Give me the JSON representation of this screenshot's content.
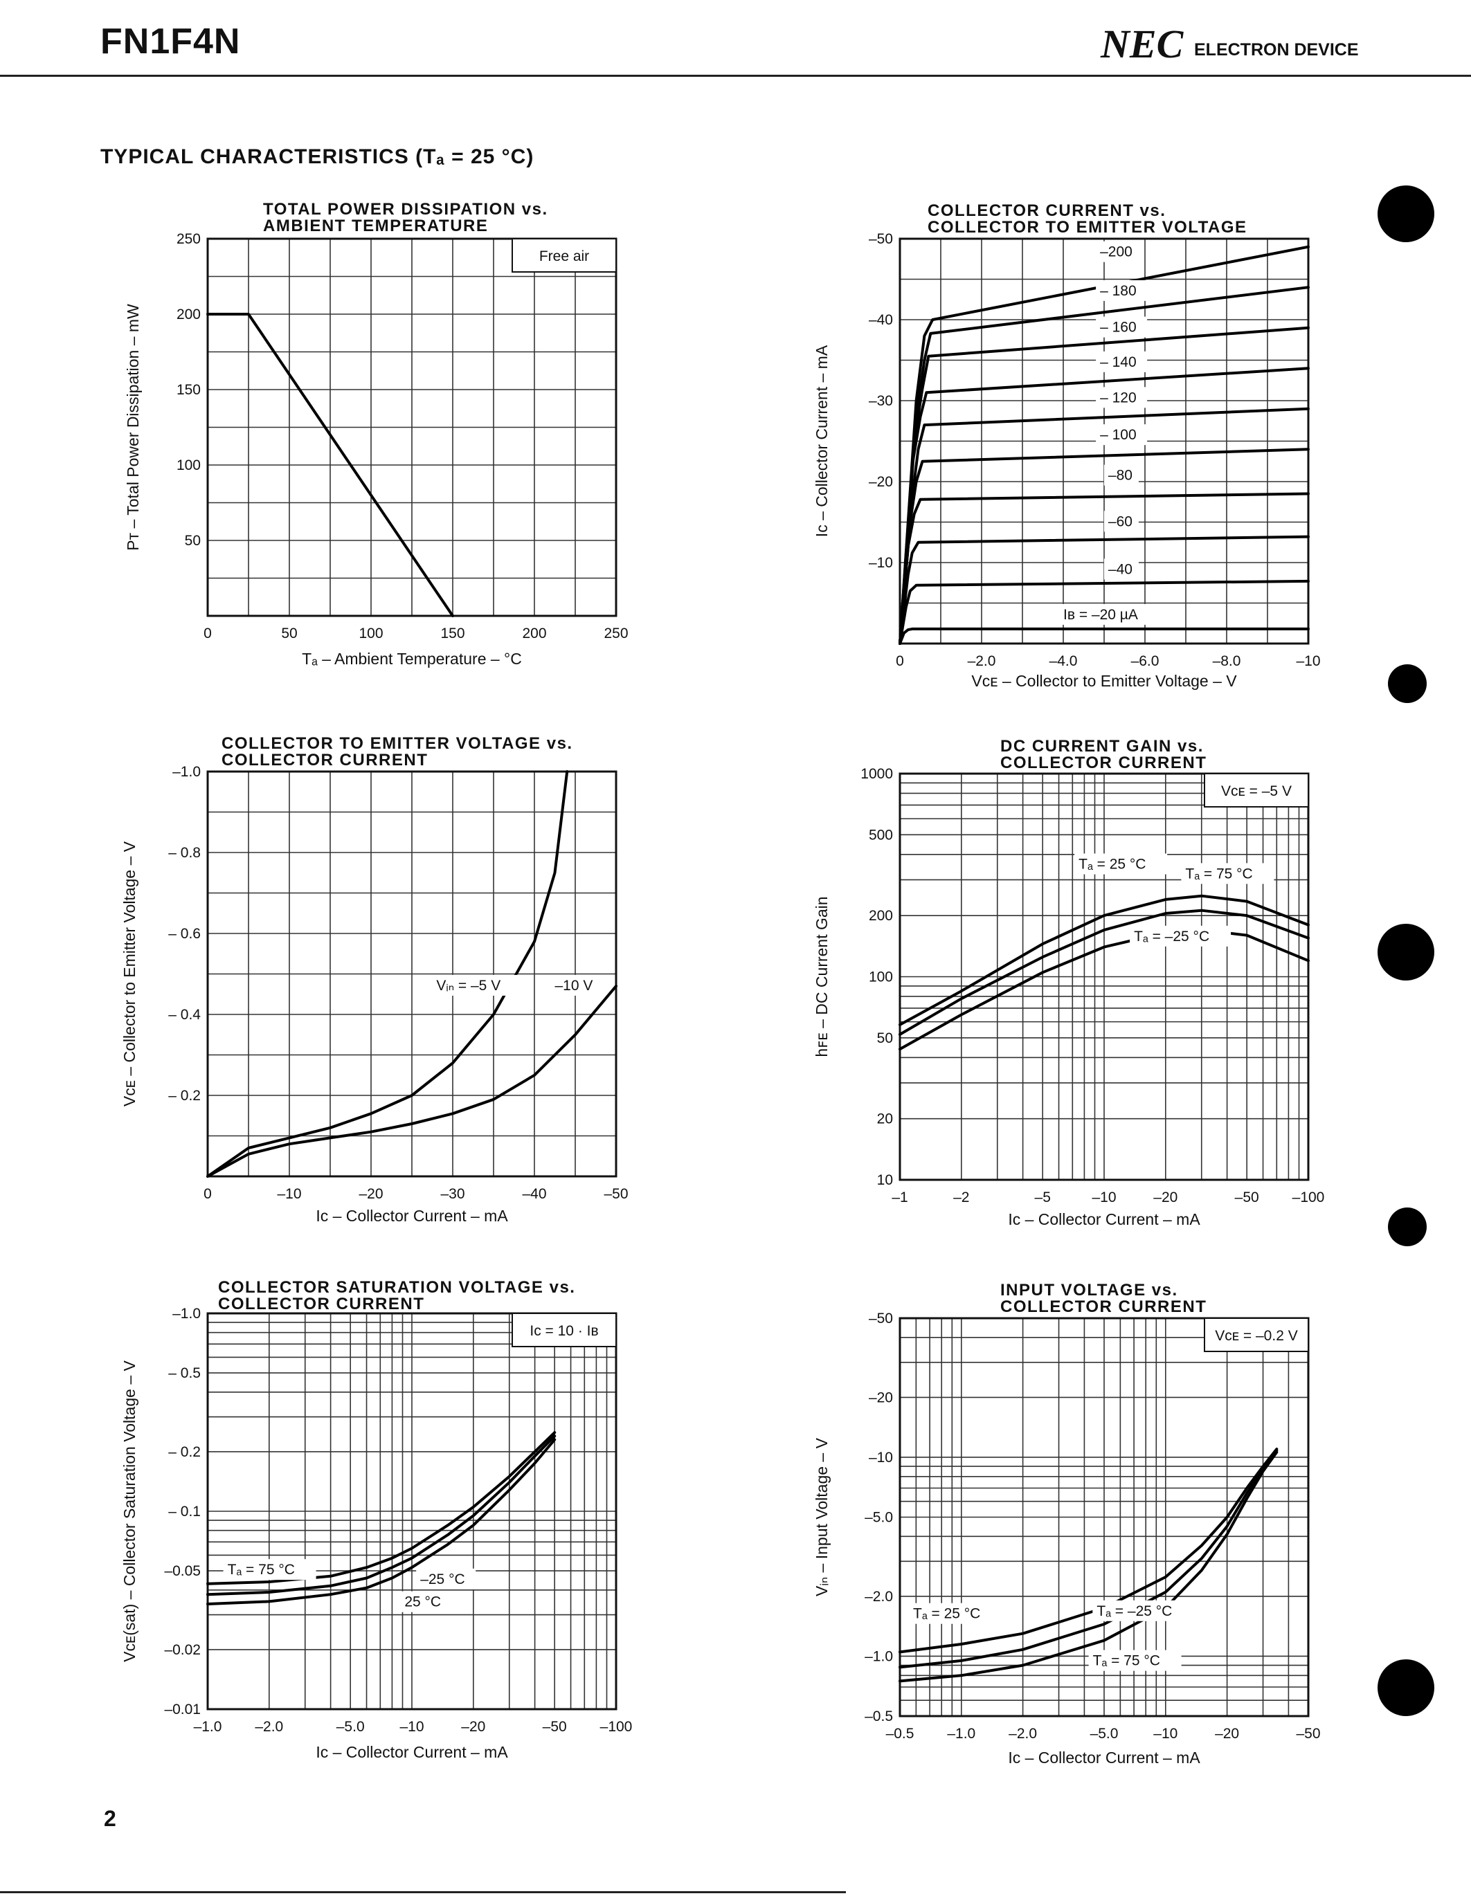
{
  "header": {
    "title": "FN1F4N",
    "brand": "NEC",
    "department": "ELECTRON DEVICE"
  },
  "section_title": "TYPICAL  CHARACTERISTICS  (Tₐ = 25 °C)",
  "page_number": "2",
  "chart_data": [
    {
      "id": "c1",
      "type": "line",
      "title": [
        "TOTAL POWER DISSIPATION vs.",
        "AMBIENT TEMPERATURE"
      ],
      "xlabel": "Tₐ – Ambient Temperature – °C",
      "ylabel": "Pᴛ – Total Power Dissipation – mW",
      "xlim": [
        0,
        250
      ],
      "ylim": [
        0,
        250
      ],
      "xticks": [
        0,
        50,
        100,
        150,
        200,
        250
      ],
      "xtick_labels": [
        "0",
        "50",
        "100",
        "150",
        "200",
        "250"
      ],
      "yticks": [
        50,
        100,
        150,
        200,
        250
      ],
      "ytick_labels": [
        "50",
        "100",
        "150",
        "200",
        "250"
      ],
      "annotation": "Free air",
      "series": [
        {
          "name": "PT",
          "x": [
            0,
            25,
            150
          ],
          "y": [
            200,
            200,
            0
          ]
        }
      ]
    },
    {
      "id": "c2",
      "type": "line",
      "title": [
        "COLLECTOR CURRENT vs.",
        "COLLECTOR TO EMITTER VOLTAGE"
      ],
      "xlabel": "Vᴄᴇ – Collector to Emitter Voltage – V",
      "ylabel": "Iᴄ – Collector Current – mA",
      "xlim": [
        0,
        -10
      ],
      "ylim": [
        0,
        -50
      ],
      "xticks": [
        0,
        -2,
        -4,
        -6,
        -8,
        -10
      ],
      "xtick_labels": [
        "0",
        "–2.0",
        "–4.0",
        "–6.0",
        "–8.0",
        "–10"
      ],
      "yticks": [
        -10,
        -20,
        -30,
        -40,
        -50
      ],
      "ytick_labels": [
        "–10",
        "–20",
        "–30",
        "–40",
        "–50"
      ],
      "parameter": "Iʙ (µA)",
      "series": [
        {
          "name": "Iʙ = –20 µA",
          "x": [
            0,
            -0.1,
            -0.2,
            -0.3,
            -10
          ],
          "y": [
            0,
            -1.3,
            -1.7,
            -1.8,
            -1.8
          ]
        },
        {
          "name": "–40",
          "x": [
            0,
            -0.15,
            -0.25,
            -0.4,
            -10
          ],
          "y": [
            0,
            -4.5,
            -6.5,
            -7.2,
            -7.7
          ]
        },
        {
          "name": "–60",
          "x": [
            0,
            -0.2,
            -0.3,
            -0.45,
            -10
          ],
          "y": [
            0,
            -8.5,
            -11.2,
            -12.5,
            -13.2
          ]
        },
        {
          "name": "–80",
          "x": [
            0,
            -0.2,
            -0.35,
            -0.5,
            -10
          ],
          "y": [
            0,
            -12,
            -16,
            -17.8,
            -18.5
          ]
        },
        {
          "name": "–100",
          "x": [
            0,
            -0.25,
            -0.4,
            -0.55,
            -10
          ],
          "y": [
            0,
            -15,
            -20,
            -22.5,
            -24
          ]
        },
        {
          "name": "–120",
          "x": [
            0,
            -0.3,
            -0.45,
            -0.6,
            -10
          ],
          "y": [
            0,
            -18,
            -24,
            -27,
            -29
          ]
        },
        {
          "name": "–140",
          "x": [
            0,
            -0.3,
            -0.5,
            -0.65,
            -10
          ],
          "y": [
            0,
            -22,
            -28,
            -31,
            -34
          ]
        },
        {
          "name": "–160",
          "x": [
            0,
            -0.35,
            -0.55,
            -0.7,
            -10
          ],
          "y": [
            0,
            -25,
            -31.5,
            -35.5,
            -39
          ]
        },
        {
          "name": "–180",
          "x": [
            0,
            -0.4,
            -0.6,
            -0.75,
            -10
          ],
          "y": [
            0,
            -28,
            -35,
            -38.3,
            -44
          ]
        },
        {
          "name": "–200",
          "x": [
            0,
            -0.4,
            -0.6,
            -0.8,
            -10
          ],
          "y": [
            0,
            -30,
            -38,
            -40,
            -49
          ]
        }
      ],
      "curve_labels": [
        {
          "text": "–200",
          "x": -4.9,
          "y": -47.8
        },
        {
          "text": "– 180",
          "x": -4.9,
          "y": -43.0
        },
        {
          "text": "– 160",
          "x": -4.9,
          "y": -38.5
        },
        {
          "text": "– 140",
          "x": -4.9,
          "y": -34.2
        },
        {
          "text": "– 120",
          "x": -4.9,
          "y": -29.8
        },
        {
          "text": "– 100",
          "x": -4.9,
          "y": -25.2
        },
        {
          "text": "–80",
          "x": -5.1,
          "y": -20.2
        },
        {
          "text": "–60",
          "x": -5.1,
          "y": -14.5
        },
        {
          "text": "–40",
          "x": -5.1,
          "y": -8.6
        },
        {
          "text": "Iʙ = –20 µA",
          "x": -4.0,
          "y": -3.0
        }
      ]
    },
    {
      "id": "c3",
      "type": "line",
      "title": [
        "COLLECTOR TO EMITTER VOLTAGE vs.",
        "COLLECTOR CURRENT"
      ],
      "xlabel": "Iᴄ – Collector Current – mA",
      "ylabel": "Vᴄᴇ – Collector to Emitter Voltage – V",
      "xlim": [
        0,
        -50
      ],
      "ylim": [
        0,
        -1.0
      ],
      "xticks": [
        0,
        -10,
        -20,
        -30,
        -40,
        -50
      ],
      "xtick_labels": [
        "0",
        "–10",
        "–20",
        "–30",
        "–40",
        "–50"
      ],
      "yticks": [
        -0.2,
        -0.4,
        -0.6,
        -0.8,
        -1.0
      ],
      "ytick_labels": [
        "– 0.2",
        "– 0.4",
        "– 0.6",
        "– 0.8",
        "–1.0"
      ],
      "series": [
        {
          "name": "Vin = –5 V",
          "x": [
            0,
            -5,
            -10,
            -15,
            -20,
            -25,
            -30,
            -35,
            -40,
            -42.5,
            -44
          ],
          "y": [
            0,
            -0.07,
            -0.095,
            -0.12,
            -0.155,
            -0.2,
            -0.28,
            -0.4,
            -0.58,
            -0.75,
            -1.0
          ]
        },
        {
          "name": "–10 V",
          "x": [
            0,
            -5,
            -10,
            -15,
            -20,
            -25,
            -30,
            -35,
            -40,
            -45,
            -50
          ],
          "y": [
            0,
            -0.055,
            -0.08,
            -0.095,
            -0.11,
            -0.13,
            -0.155,
            -0.19,
            -0.25,
            -0.35,
            -0.47
          ]
        }
      ],
      "curve_labels": [
        {
          "text": "Vᵢₙ = –5 V",
          "x": -28,
          "y": -0.46
        },
        {
          "text": "–10 V",
          "x": -42.5,
          "y": -0.46
        }
      ]
    },
    {
      "id": "c4",
      "type": "line",
      "title": [
        "DC CURRENT GAIN vs.",
        "COLLECTOR CURRENT"
      ],
      "xlabel": "Iᴄ – Collector Current – mA",
      "ylabel": "hꜰᴇ – DC Current Gain",
      "xscale": "log",
      "yscale": "log",
      "xlim": [
        -1,
        -100
      ],
      "ylim": [
        10,
        1000
      ],
      "xticks": [
        -1,
        -2,
        -5,
        -10,
        -20,
        -50,
        -100
      ],
      "xtick_labels": [
        "–1",
        "–2",
        "–5",
        "–10",
        "–20",
        "–50",
        "–100"
      ],
      "yticks": [
        10,
        20,
        50,
        100,
        200,
        500,
        1000
      ],
      "ytick_labels": [
        "10",
        "20",
        "50",
        "100",
        "200",
        "500",
        "1000"
      ],
      "annotation": "Vᴄᴇ = –5 V",
      "series": [
        {
          "name": "Tₐ = 75 °C",
          "x": [
            -1,
            -2,
            -5,
            -10,
            -20,
            -30,
            -50,
            -100
          ],
          "y": [
            58,
            85,
            145,
            200,
            240,
            250,
            235,
            180
          ]
        },
        {
          "name": "Tₐ = 25 °C",
          "x": [
            -1,
            -2,
            -5,
            -10,
            -20,
            -30,
            -50,
            -100
          ],
          "y": [
            52,
            78,
            125,
            170,
            205,
            212,
            200,
            155
          ]
        },
        {
          "name": "Tₐ = –25 °C",
          "x": [
            -1,
            -2,
            -5,
            -10,
            -20,
            -30,
            -50,
            -100
          ],
          "y": [
            44,
            65,
            105,
            140,
            165,
            170,
            160,
            120
          ]
        }
      ],
      "curve_labels": [
        {
          "text": "Tₐ = 25 °C",
          "x": -7.5,
          "y": 340
        },
        {
          "text": "Tₐ = 75 °C",
          "x": -25,
          "y": 305
        },
        {
          "text": "Tₐ = –25 °C",
          "x": -14,
          "y": 150
        }
      ]
    },
    {
      "id": "c5",
      "type": "line",
      "title": [
        "COLLECTOR SATURATION VOLTAGE vs.",
        "COLLECTOR CURRENT"
      ],
      "xlabel": "Iᴄ – Collector Current – mA",
      "ylabel": "Vᴄᴇ(sat) – Collector Saturation Voltage – V",
      "xscale": "log",
      "yscale": "log",
      "xlim": [
        -1,
        -100
      ],
      "ylim": [
        -0.01,
        -1.0
      ],
      "xticks": [
        -1,
        -2,
        -5,
        -10,
        -20,
        -50,
        -100
      ],
      "xtick_labels": [
        "–1.0",
        "–2.0",
        "–5.0",
        "–10",
        "–20",
        "–50",
        "–100"
      ],
      "yticks": [
        -0.01,
        -0.02,
        -0.05,
        -0.1,
        -0.2,
        -0.5,
        -1.0
      ],
      "ytick_labels": [
        "–0.01",
        "–0.02",
        "–0.05",
        "– 0.1",
        "– 0.2",
        "– 0.5",
        "–1.0"
      ],
      "annotation": "Iᴄ = 10 · Iʙ",
      "series": [
        {
          "name": "Tₐ = 75 °C",
          "x": [
            -1,
            -2,
            -4,
            -6,
            -8,
            -10,
            -15,
            -20,
            -30,
            -40,
            -50
          ],
          "y": [
            -0.043,
            -0.044,
            -0.047,
            -0.052,
            -0.058,
            -0.065,
            -0.085,
            -0.105,
            -0.15,
            -0.2,
            -0.25
          ]
        },
        {
          "name": "–25 °C",
          "x": [
            -1,
            -2,
            -4,
            -6,
            -8,
            -10,
            -15,
            -20,
            -30,
            -40,
            -50
          ],
          "y": [
            -0.038,
            -0.039,
            -0.042,
            -0.046,
            -0.052,
            -0.058,
            -0.076,
            -0.095,
            -0.14,
            -0.19,
            -0.24
          ]
        },
        {
          "name": "25 °C",
          "x": [
            -1,
            -2,
            -4,
            -6,
            -8,
            -10,
            -15,
            -20,
            -30,
            -40,
            -50
          ],
          "y": [
            -0.034,
            -0.035,
            -0.038,
            -0.041,
            -0.046,
            -0.052,
            -0.068,
            -0.085,
            -0.128,
            -0.175,
            -0.23
          ]
        }
      ],
      "curve_labels": [
        {
          "text": "Tₐ = 75 °C",
          "x": -1.25,
          "y": -0.048
        },
        {
          "text": "–25 °C",
          "x": -11,
          "y": -0.043
        },
        {
          "text": "25 °C",
          "x": -9.2,
          "y": -0.033
        }
      ]
    },
    {
      "id": "c6",
      "type": "line",
      "title": [
        "INPUT VOLTAGE vs.",
        "COLLECTOR CURRENT"
      ],
      "xlabel": "Iᴄ – Collector Current – mA",
      "ylabel": "Vᵢₙ – Input Voltage – V",
      "xscale": "log",
      "yscale": "log",
      "xlim": [
        -0.5,
        -50
      ],
      "ylim": [
        -0.5,
        -50
      ],
      "xticks": [
        -0.5,
        -1,
        -2,
        -5,
        -10,
        -20,
        -50
      ],
      "xtick_labels": [
        "–0.5",
        "–1.0",
        "–2.0",
        "–5.0",
        "–10",
        "–20",
        "–50"
      ],
      "yticks": [
        -0.5,
        -1,
        -2,
        -5,
        -10,
        -20,
        -50
      ],
      "ytick_labels": [
        "–0.5",
        "–1.0",
        "–2.0",
        "–5.0",
        "–10",
        "–20",
        "–50"
      ],
      "annotation": "Vᴄᴇ = –0.2 V",
      "series": [
        {
          "name": "Tₐ = –25 °C",
          "x": [
            -0.5,
            -1,
            -2,
            -5,
            -10,
            -15,
            -20,
            -25,
            -30,
            -35
          ],
          "y": [
            -1.05,
            -1.15,
            -1.3,
            -1.75,
            -2.5,
            -3.6,
            -5,
            -7,
            -9,
            -11
          ]
        },
        {
          "name": "Tₐ = 25 °C",
          "x": [
            -0.5,
            -1,
            -2,
            -5,
            -10,
            -15,
            -20,
            -25,
            -30,
            -35
          ],
          "y": [
            -0.88,
            -0.95,
            -1.08,
            -1.45,
            -2.1,
            -3.1,
            -4.5,
            -6.6,
            -8.7,
            -10.8
          ]
        },
        {
          "name": "Tₐ = 75 °C",
          "x": [
            -0.5,
            -1,
            -2,
            -5,
            -10,
            -15,
            -20,
            -25,
            -30,
            -35
          ],
          "y": [
            -0.75,
            -0.8,
            -0.9,
            -1.2,
            -1.75,
            -2.7,
            -4.1,
            -6.2,
            -8.5,
            -10.6
          ]
        }
      ],
      "curve_labels": [
        {
          "text": "Tₐ = 25 °C",
          "x": -0.58,
          "y": -1.55
        },
        {
          "text": "Tₐ = –25 °C",
          "x": -4.6,
          "y": -1.6
        },
        {
          "text": "Tₐ = 75 °C",
          "x": -4.4,
          "y": -0.9
        }
      ]
    }
  ]
}
